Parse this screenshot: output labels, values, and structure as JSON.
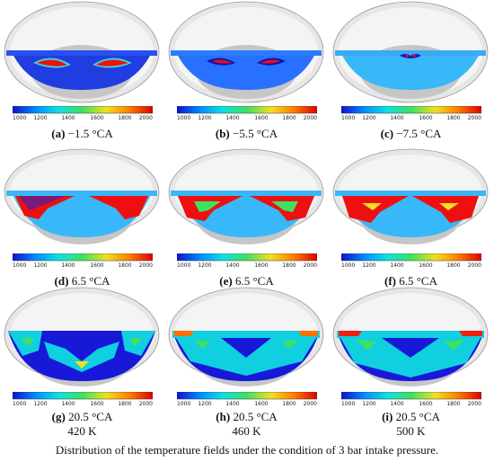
{
  "colorbar": {
    "ticks": [
      "1000",
      "1200",
      "1400",
      "1600",
      "1800",
      "2000"
    ],
    "gradient": [
      "#1010d0",
      "#0090ff",
      "#10e0e0",
      "#40e060",
      "#f0e020",
      "#ff8000",
      "#e00000"
    ]
  },
  "panels": [
    {
      "letter": "(a)",
      "label": "−1.5 °CA",
      "sub": ""
    },
    {
      "letter": "(b)",
      "label": "−5.5 °CA",
      "sub": ""
    },
    {
      "letter": "(c)",
      "label": "−7.5 °CA",
      "sub": ""
    },
    {
      "letter": "(d)",
      "label": "6.5 °CA",
      "sub": ""
    },
    {
      "letter": "(e)",
      "label": "6.5 °CA",
      "sub": ""
    },
    {
      "letter": "(f)",
      "label": "6.5 °CA",
      "sub": ""
    },
    {
      "letter": "(g)",
      "label": "20.5 °CA",
      "sub": "420 K"
    },
    {
      "letter": "(h)",
      "label": "20.5 °CA",
      "sub": "460 K"
    },
    {
      "letter": "(i)",
      "label": "20.5 °CA",
      "sub": "500 K"
    }
  ],
  "caption": "Distribution of the temperature fields under the condition of 3 bar intake pressure."
}
